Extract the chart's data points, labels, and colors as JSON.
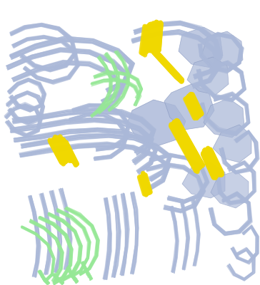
{
  "background_color": "#ffffff",
  "blue_color": "#aab8d8",
  "blue_light": "#bbc8e4",
  "blue_shade": "#8898c0",
  "green_color": "#96e896",
  "yellow_color": "#f0d800",
  "figsize": [
    3.64,
    4.0
  ],
  "dpi": 100,
  "xlim": [
    0,
    364
  ],
  "ylim": [
    0,
    400
  ],
  "note": "NMR Structure - all models. Pixel coords: y=0 at top. Many thin parallel lines."
}
